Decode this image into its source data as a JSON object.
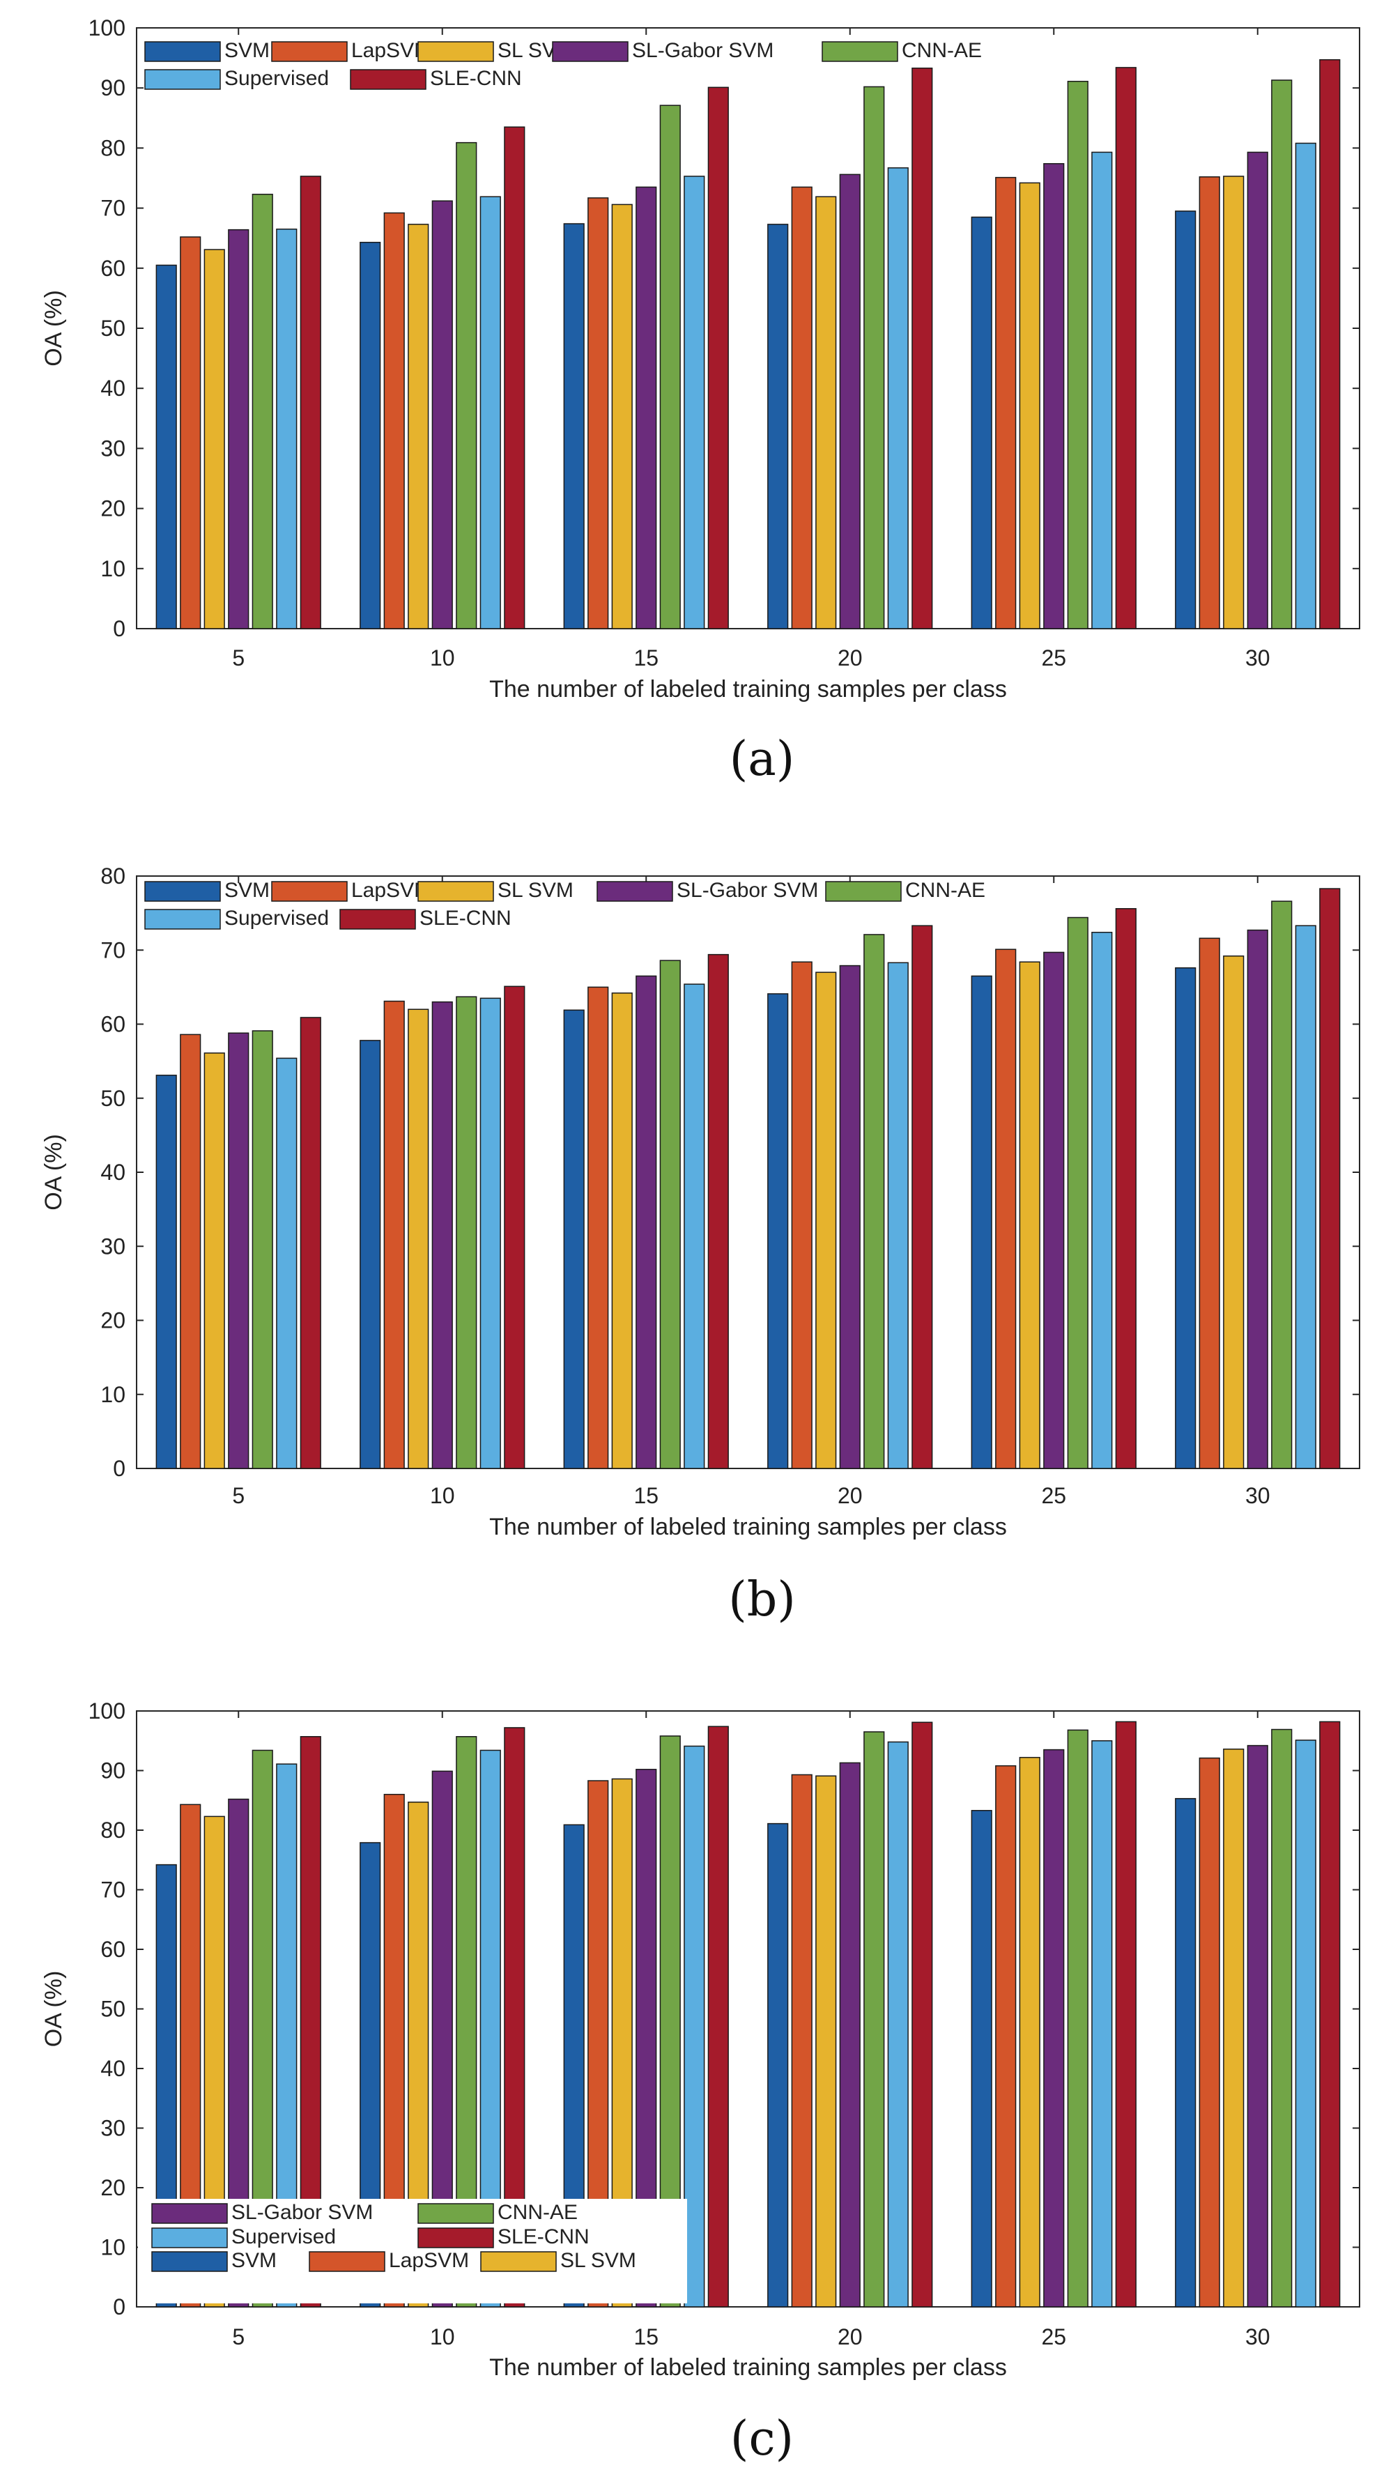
{
  "series_colors": {
    "SVM": "#1f5fa5",
    "LapSVM": "#d4552a",
    "SL SVM": "#e6b32d",
    "SL-Gabor SVM": "#6b2c7c",
    "CNN-AE": "#72a547",
    "Supervised": "#5baee0",
    "SLE-CNN": "#a51b2b"
  },
  "chart_data": [
    {
      "type": "bar",
      "caption": "(a)",
      "categories": [
        "5",
        "10",
        "15",
        "20",
        "25",
        "30"
      ],
      "xlabel": "The number of labeled training samples per class",
      "ylabel": "OA (%)",
      "ylim": [
        0,
        100
      ],
      "yticks": [
        "0",
        "10",
        "20",
        "30",
        "40",
        "50",
        "60",
        "70",
        "80",
        "90",
        "100"
      ],
      "legend_placement": "top-left",
      "legend_rows": [
        [
          "SVM",
          "LapSVM",
          "SL SVM",
          "SL-Gabor SVM",
          "CNN-AE"
        ],
        [
          "Supervised",
          "SLE-CNN"
        ]
      ],
      "series": [
        {
          "name": "SVM",
          "values": [
            60.5,
            64.3,
            67.4,
            67.3,
            68.5,
            69.5
          ]
        },
        {
          "name": "LapSVM",
          "values": [
            65.2,
            69.2,
            71.7,
            73.5,
            75.1,
            75.2
          ]
        },
        {
          "name": "SL SVM",
          "values": [
            63.1,
            67.3,
            70.6,
            71.9,
            74.2,
            75.3
          ]
        },
        {
          "name": "SL-Gabor SVM",
          "values": [
            66.4,
            71.2,
            73.5,
            75.6,
            77.4,
            79.3
          ]
        },
        {
          "name": "CNN-AE",
          "values": [
            72.3,
            80.9,
            87.1,
            90.2,
            91.1,
            91.3
          ]
        },
        {
          "name": "Supervised",
          "values": [
            66.5,
            71.9,
            75.3,
            76.7,
            79.3,
            80.8
          ]
        },
        {
          "name": "SLE-CNN",
          "values": [
            75.3,
            83.5,
            90.1,
            93.3,
            93.4,
            94.7
          ]
        }
      ]
    },
    {
      "type": "bar",
      "caption": "(b)",
      "categories": [
        "5",
        "10",
        "15",
        "20",
        "25",
        "30"
      ],
      "xlabel": "The number of labeled training samples per class",
      "ylabel": "OA (%)",
      "ylim": [
        0,
        80
      ],
      "yticks": [
        "0",
        "10",
        "20",
        "30",
        "40",
        "50",
        "60",
        "70",
        "80"
      ],
      "legend_placement": "top-left",
      "legend_rows": [
        [
          "SVM",
          "LapSVM",
          "SL SVM",
          "SL-Gabor SVM",
          "CNN-AE"
        ],
        [
          "Supervised",
          "SLE-CNN"
        ]
      ],
      "series": [
        {
          "name": "SVM",
          "values": [
            53.1,
            57.8,
            61.9,
            64.1,
            66.5,
            67.6
          ]
        },
        {
          "name": "LapSVM",
          "values": [
            58.6,
            63.1,
            65.0,
            68.4,
            70.1,
            71.6
          ]
        },
        {
          "name": "SL SVM",
          "values": [
            56.1,
            62.0,
            64.2,
            67.0,
            68.4,
            69.2
          ]
        },
        {
          "name": "SL-Gabor SVM",
          "values": [
            58.8,
            63.0,
            66.5,
            67.9,
            69.7,
            72.7
          ]
        },
        {
          "name": "CNN-AE",
          "values": [
            59.1,
            63.7,
            68.6,
            72.1,
            74.4,
            76.6
          ]
        },
        {
          "name": "Supervised",
          "values": [
            55.4,
            63.5,
            65.4,
            68.3,
            72.4,
            73.3
          ]
        },
        {
          "name": "SLE-CNN",
          "values": [
            60.9,
            65.1,
            69.4,
            73.3,
            75.6,
            78.3
          ]
        }
      ]
    },
    {
      "type": "bar",
      "caption": "(c)",
      "categories": [
        "5",
        "10",
        "15",
        "20",
        "25",
        "30"
      ],
      "xlabel": "The number of labeled training samples per class",
      "ylabel": "OA (%)",
      "ylim": [
        0,
        100
      ],
      "yticks": [
        "0",
        "10",
        "20",
        "30",
        "40",
        "50",
        "60",
        "70",
        "80",
        "90",
        "100"
      ],
      "legend_placement": "bottom-left",
      "legend_rows": [
        [
          "SL-Gabor SVM",
          "CNN-AE"
        ],
        [
          "Supervised",
          "SLE-CNN"
        ],
        [
          "SVM",
          "LapSVM",
          "SL SVM"
        ]
      ],
      "series": [
        {
          "name": "SVM",
          "values": [
            74.2,
            77.9,
            80.9,
            81.1,
            83.3,
            85.3
          ]
        },
        {
          "name": "LapSVM",
          "values": [
            84.3,
            86.0,
            88.3,
            89.3,
            90.8,
            92.1
          ]
        },
        {
          "name": "SL SVM",
          "values": [
            82.3,
            84.7,
            88.6,
            89.1,
            92.2,
            93.6
          ]
        },
        {
          "name": "SL-Gabor SVM",
          "values": [
            85.2,
            89.9,
            90.2,
            91.3,
            93.5,
            94.2
          ]
        },
        {
          "name": "CNN-AE",
          "values": [
            93.4,
            95.7,
            95.8,
            96.5,
            96.8,
            96.9
          ]
        },
        {
          "name": "Supervised",
          "values": [
            91.1,
            93.4,
            94.1,
            94.8,
            95.0,
            95.1
          ]
        },
        {
          "name": "SLE-CNN",
          "values": [
            95.7,
            97.2,
            97.4,
            98.1,
            98.2,
            98.2
          ]
        }
      ]
    }
  ]
}
